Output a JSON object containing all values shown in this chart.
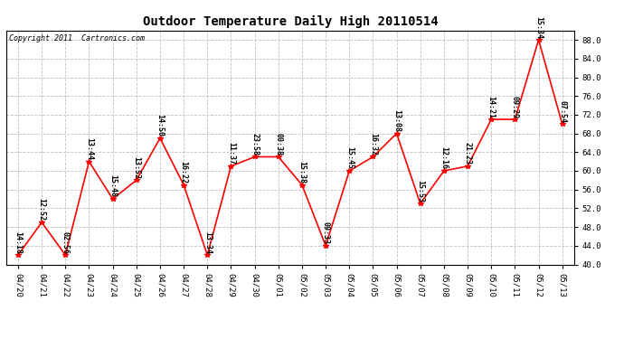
{
  "title": "Outdoor Temperature Daily High 20110514",
  "copyright": "Copyright 2011  Cartronics.com",
  "dates": [
    "04/20",
    "04/21",
    "04/22",
    "04/23",
    "04/24",
    "04/25",
    "04/26",
    "04/27",
    "04/28",
    "04/29",
    "04/30",
    "05/01",
    "05/02",
    "05/03",
    "05/04",
    "05/05",
    "05/06",
    "05/07",
    "05/08",
    "05/09",
    "05/10",
    "05/11",
    "05/12",
    "05/13"
  ],
  "values": [
    42,
    49,
    42,
    62,
    54,
    58,
    67,
    57,
    42,
    61,
    63,
    63,
    57,
    44,
    60,
    63,
    68,
    53,
    60,
    61,
    71,
    71,
    88,
    70
  ],
  "times": [
    "14:18",
    "12:52",
    "02:56",
    "13:44",
    "15:48",
    "13:52",
    "14:50",
    "16:22",
    "13:34",
    "11:37",
    "23:58",
    "00:38",
    "15:38",
    "09:33",
    "15:45",
    "16:32",
    "13:08",
    "15:53",
    "12:16",
    "21:23",
    "14:21",
    "09:29",
    "15:34",
    "07:54"
  ],
  "ylim": [
    40,
    90
  ],
  "yticks": [
    40.0,
    44.0,
    48.0,
    52.0,
    56.0,
    60.0,
    64.0,
    68.0,
    72.0,
    76.0,
    80.0,
    84.0,
    88.0
  ],
  "line_color": "red",
  "marker_color": "red",
  "bg_color": "white",
  "grid_color": "#c0c0c0",
  "title_fontsize": 10,
  "annot_fontsize": 6,
  "copyright_fontsize": 6,
  "tick_fontsize": 6.5
}
